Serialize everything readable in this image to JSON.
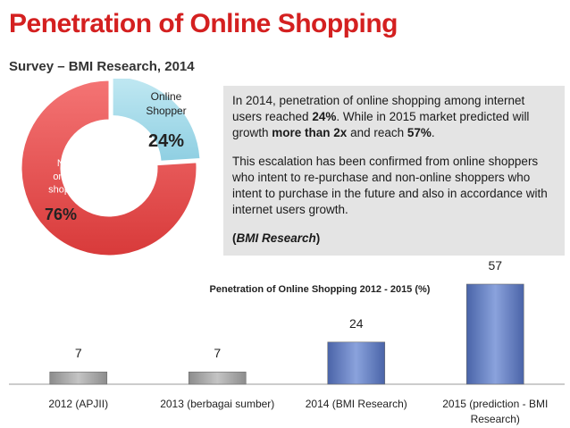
{
  "header": {
    "title": "Penetration of Online Shopping",
    "subtitle": "Survey – BMI Research, 2014"
  },
  "info": {
    "p1_a": "In 2014, penetration of online shopping among internet users reached ",
    "p1_b": "24%",
    "p1_c": ". While in 2015 market  predicted will growth ",
    "p1_d": "more than 2x",
    "p1_e": " and reach ",
    "p1_f": "57%",
    "p1_g": ".",
    "p2": "This escalation has been confirmed from online shoppers who intent to re-purchase and non-online shoppers who intent to purchase in the future and also in accordance with internet users growth.",
    "p3_open": "(",
    "p3_src": "BMI Research",
    "p3_close": ")"
  },
  "chart_data": [
    {
      "type": "pie",
      "title": "",
      "slices": [
        {
          "label": "Online Shopper",
          "value": 24,
          "value_label": "24%",
          "color": "#a6dcea"
        },
        {
          "label": "Non online shopper",
          "value": 76,
          "value_label": "76%",
          "color": "#f05a5a"
        }
      ]
    },
    {
      "type": "bar",
      "title": "Penetration of Online Shopping 2012 - 2015 (%)",
      "categories": [
        "2012 (APJII)",
        "2013 (berbagai sumber)",
        "2014 (BMI Research)",
        "2015 (prediction - BMI Research)"
      ],
      "values": [
        7,
        7,
        24,
        57
      ],
      "colors": [
        "#a8a8a8",
        "#a8a8a8",
        "#5b76b8",
        "#5b76b8"
      ],
      "xlabel": "",
      "ylabel": ""
    }
  ]
}
